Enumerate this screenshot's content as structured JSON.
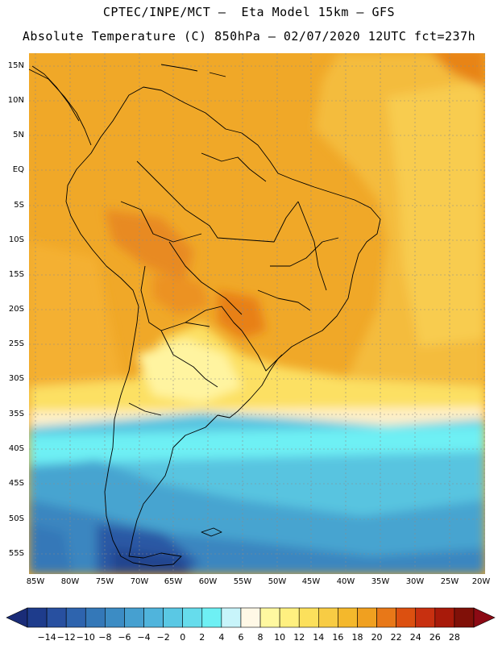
{
  "title": {
    "line1": "CPTEC/INPE/MCT –  Eta Model 15km – GFS",
    "line2": "Absolute Temperature (C) 850hPa – 02/07/2020 12UTC fct=237h"
  },
  "map": {
    "lat_labels": [
      "15N",
      "10N",
      "5N",
      "EQ",
      "5S",
      "10S",
      "15S",
      "20S",
      "25S",
      "30S",
      "35S",
      "40S",
      "45S",
      "50S",
      "55S"
    ],
    "lon_labels": [
      "85W",
      "80W",
      "75W",
      "70W",
      "65W",
      "60W",
      "55W",
      "50W",
      "45W",
      "40W",
      "35W",
      "30W",
      "25W",
      "20W"
    ]
  },
  "colorbar": {
    "labels": [
      "-14",
      "-12",
      "-10",
      "-8",
      "-6",
      "-4",
      "-2",
      "0",
      "2",
      "4",
      "6",
      "8",
      "10",
      "12",
      "14",
      "16",
      "18",
      "20",
      "22",
      "24",
      "26",
      "28"
    ],
    "colors": [
      "#1e3c8c",
      "#2850a0",
      "#2e64ae",
      "#3478b8",
      "#3c8cc4",
      "#46a0d0",
      "#50b4dc",
      "#5ac8e4",
      "#66dcec",
      "#6ef0f4",
      "#c8f4fa",
      "#fff8e6",
      "#fff8a0",
      "#fff080",
      "#fce05c",
      "#f8cc44",
      "#f4b82c",
      "#f0a020",
      "#e87818",
      "#dc5010",
      "#c83010",
      "#a81a0a",
      "#801008"
    ],
    "under_color": "#1a2c78",
    "over_color": "#8c0a14"
  }
}
